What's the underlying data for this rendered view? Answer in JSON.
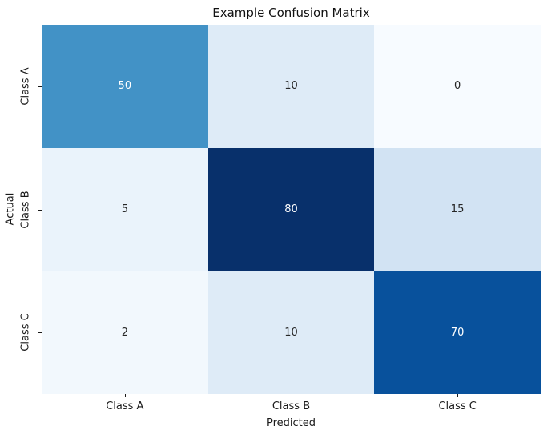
{
  "chart_data": {
    "type": "heatmap",
    "title": "Example Confusion Matrix",
    "xlabel": "Predicted",
    "ylabel": "Actual",
    "x_categories": [
      "Class A",
      "Class B",
      "Class C"
    ],
    "y_categories": [
      "Class A",
      "Class B",
      "Class C"
    ],
    "values": [
      [
        50,
        10,
        0
      ],
      [
        5,
        80,
        15
      ],
      [
        2,
        10,
        70
      ]
    ],
    "colormap": "Blues",
    "vmin": 0,
    "vmax": 80,
    "cell_colors": [
      [
        "#4292c6",
        "#deebf7",
        "#f7fbff"
      ],
      [
        "#eaf3fb",
        "#08306b",
        "#d2e3f3"
      ],
      [
        "#f2f8fd",
        "#deebf7",
        "#08519c"
      ]
    ],
    "text_colors": [
      [
        "#ffffff",
        "#262626",
        "#262626"
      ],
      [
        "#262626",
        "#ffffff",
        "#262626"
      ],
      [
        "#262626",
        "#262626",
        "#ffffff"
      ]
    ],
    "grid": false,
    "legend_position": "none",
    "background_color": "#ffffff"
  }
}
